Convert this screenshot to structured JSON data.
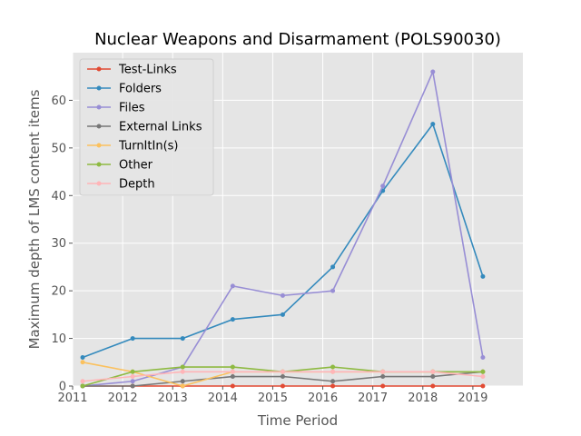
{
  "chart_data": {
    "type": "line",
    "title": "Nuclear Weapons and Disarmament (POLS90030)",
    "xlabel": "Time Period",
    "ylabel": "Maximum depth of LMS content items",
    "xlim": [
      2011,
      2020
    ],
    "ylim": [
      0,
      70
    ],
    "x_ticks": [
      "2011",
      "2012",
      "2013",
      "2014",
      "2015",
      "2016",
      "2017",
      "2018",
      "2019"
    ],
    "y_ticks": [
      "0",
      "10",
      "20",
      "30",
      "40",
      "50",
      "60"
    ],
    "grid": true,
    "legend_position": "top-left",
    "x": [
      2011.2,
      2012.2,
      2013.2,
      2014.2,
      2015.2,
      2016.2,
      2017.2,
      2018.2,
      2019.2
    ],
    "series": [
      {
        "name": "Test-Links",
        "color": "#e24a33",
        "values": [
          0,
          0,
          0,
          0,
          0,
          0,
          0,
          0,
          0
        ]
      },
      {
        "name": "Folders",
        "color": "#348abd",
        "values": [
          6,
          10,
          10,
          14,
          15,
          25,
          41,
          55,
          23
        ]
      },
      {
        "name": "Files",
        "color": "#988ed5",
        "values": [
          0,
          1,
          4,
          21,
          19,
          20,
          42,
          66,
          6
        ]
      },
      {
        "name": "External Links",
        "color": "#777777",
        "values": [
          0,
          0,
          1,
          2,
          2,
          1,
          2,
          2,
          3
        ]
      },
      {
        "name": "TurnItIn(s)",
        "color": "#fbc15e",
        "values": [
          5,
          3,
          0,
          3,
          3,
          3,
          3,
          3,
          3
        ]
      },
      {
        "name": "Other",
        "color": "#8eba42",
        "values": [
          0,
          3,
          4,
          4,
          3,
          4,
          3,
          3,
          3
        ]
      },
      {
        "name": "Depth",
        "color": "#ffb5b8",
        "values": [
          1,
          2,
          3,
          3,
          3,
          3,
          3,
          3,
          2
        ]
      }
    ]
  }
}
